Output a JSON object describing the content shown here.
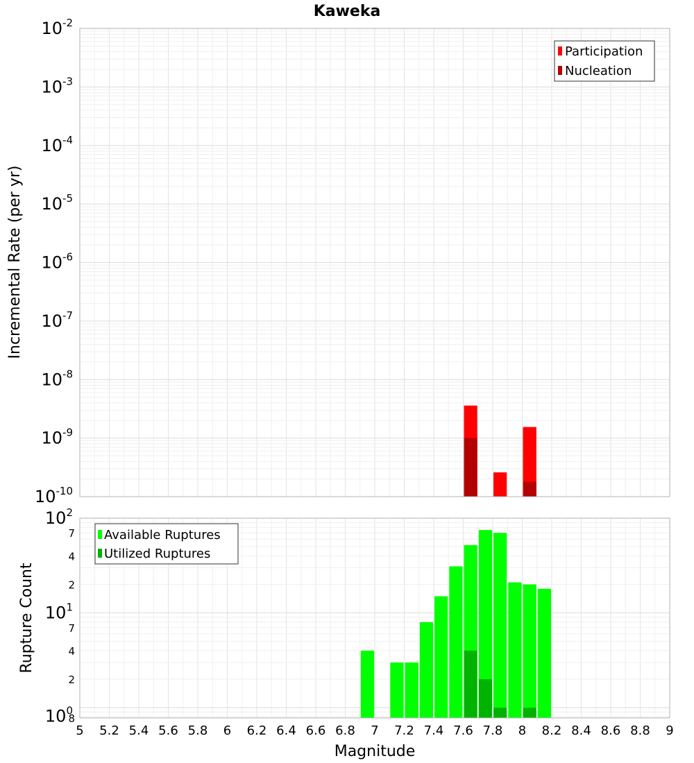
{
  "chart_data": [
    {
      "type": "bar",
      "title": "Kaweka",
      "xlabel": "",
      "ylabel": "Incremental Rate (per yr)",
      "yscale": "log",
      "ylim": [
        1e-10,
        0.01
      ],
      "xlim": [
        5,
        9
      ],
      "bin_width": 0.1,
      "y_ticks": [
        {
          "base": "10",
          "exp": "-2",
          "value": 0.01
        },
        {
          "base": "10",
          "exp": "-3",
          "value": 0.001
        },
        {
          "base": "10",
          "exp": "-4",
          "value": 0.0001
        },
        {
          "base": "10",
          "exp": "-5",
          "value": 1e-05
        },
        {
          "base": "10",
          "exp": "-6",
          "value": 1e-06
        },
        {
          "base": "10",
          "exp": "-7",
          "value": 1e-07
        },
        {
          "base": "10",
          "exp": "-8",
          "value": 1e-08
        },
        {
          "base": "10",
          "exp": "-9",
          "value": 1e-09
        },
        {
          "base": "10",
          "exp": "-10",
          "value": 1e-10
        }
      ],
      "legend": {
        "position": "top-right"
      },
      "series": [
        {
          "name": "Participation",
          "color": "#ff0000",
          "x": [
            7.65,
            7.85,
            8.05
          ],
          "values": [
            3.6e-09,
            2.6e-10,
            1.55e-09
          ]
        },
        {
          "name": "Nucleation",
          "color": "#b30000",
          "x": [
            7.65,
            7.85,
            8.05
          ],
          "values": [
            1e-09,
            0,
            1.8e-10
          ]
        }
      ]
    },
    {
      "type": "bar",
      "title": "",
      "xlabel": "Magnitude",
      "ylabel": "Rupture Count",
      "yscale": "log",
      "ylim": [
        0.78,
        100
      ],
      "xlim": [
        5,
        9
      ],
      "bin_width": 0.1,
      "x_ticks": [
        "5",
        "5.2",
        "5.4",
        "5.6",
        "5.8",
        "6",
        "6.2",
        "6.4",
        "6.6",
        "6.8",
        "7",
        "7.2",
        "7.4",
        "7.6",
        "7.8",
        "8",
        "8.2",
        "8.4",
        "8.6",
        "8.8",
        "9"
      ],
      "y_ticks": [
        {
          "base": "10",
          "exp": "2",
          "value": 100
        },
        {
          "base": "10",
          "exp": "1",
          "value": 10
        },
        {
          "base": "10",
          "exp": "0",
          "value": 1
        }
      ],
      "y_minor_labels": [
        {
          "label": "7",
          "value": 70
        },
        {
          "label": "4",
          "value": 40
        },
        {
          "label": "2",
          "value": 20
        },
        {
          "label": "7",
          "value": 7
        },
        {
          "label": "4",
          "value": 4
        },
        {
          "label": "2",
          "value": 2
        },
        {
          "label": "8",
          "value": 0.8
        }
      ],
      "legend": {
        "position": "top-left"
      },
      "series": [
        {
          "name": "Available Ruptures",
          "color": "#00ff00",
          "x": [
            6.95,
            7.15,
            7.25,
            7.35,
            7.45,
            7.55,
            7.65,
            7.75,
            7.85,
            7.95,
            8.05,
            8.15
          ],
          "values": [
            4,
            3,
            3,
            8,
            15,
            31,
            52,
            75,
            70,
            21,
            20,
            18
          ]
        },
        {
          "name": "Utilized Ruptures",
          "color": "#00b300",
          "x": [
            7.65,
            7.75,
            7.85,
            8.05
          ],
          "values": [
            4,
            2,
            1,
            1
          ]
        }
      ]
    }
  ]
}
